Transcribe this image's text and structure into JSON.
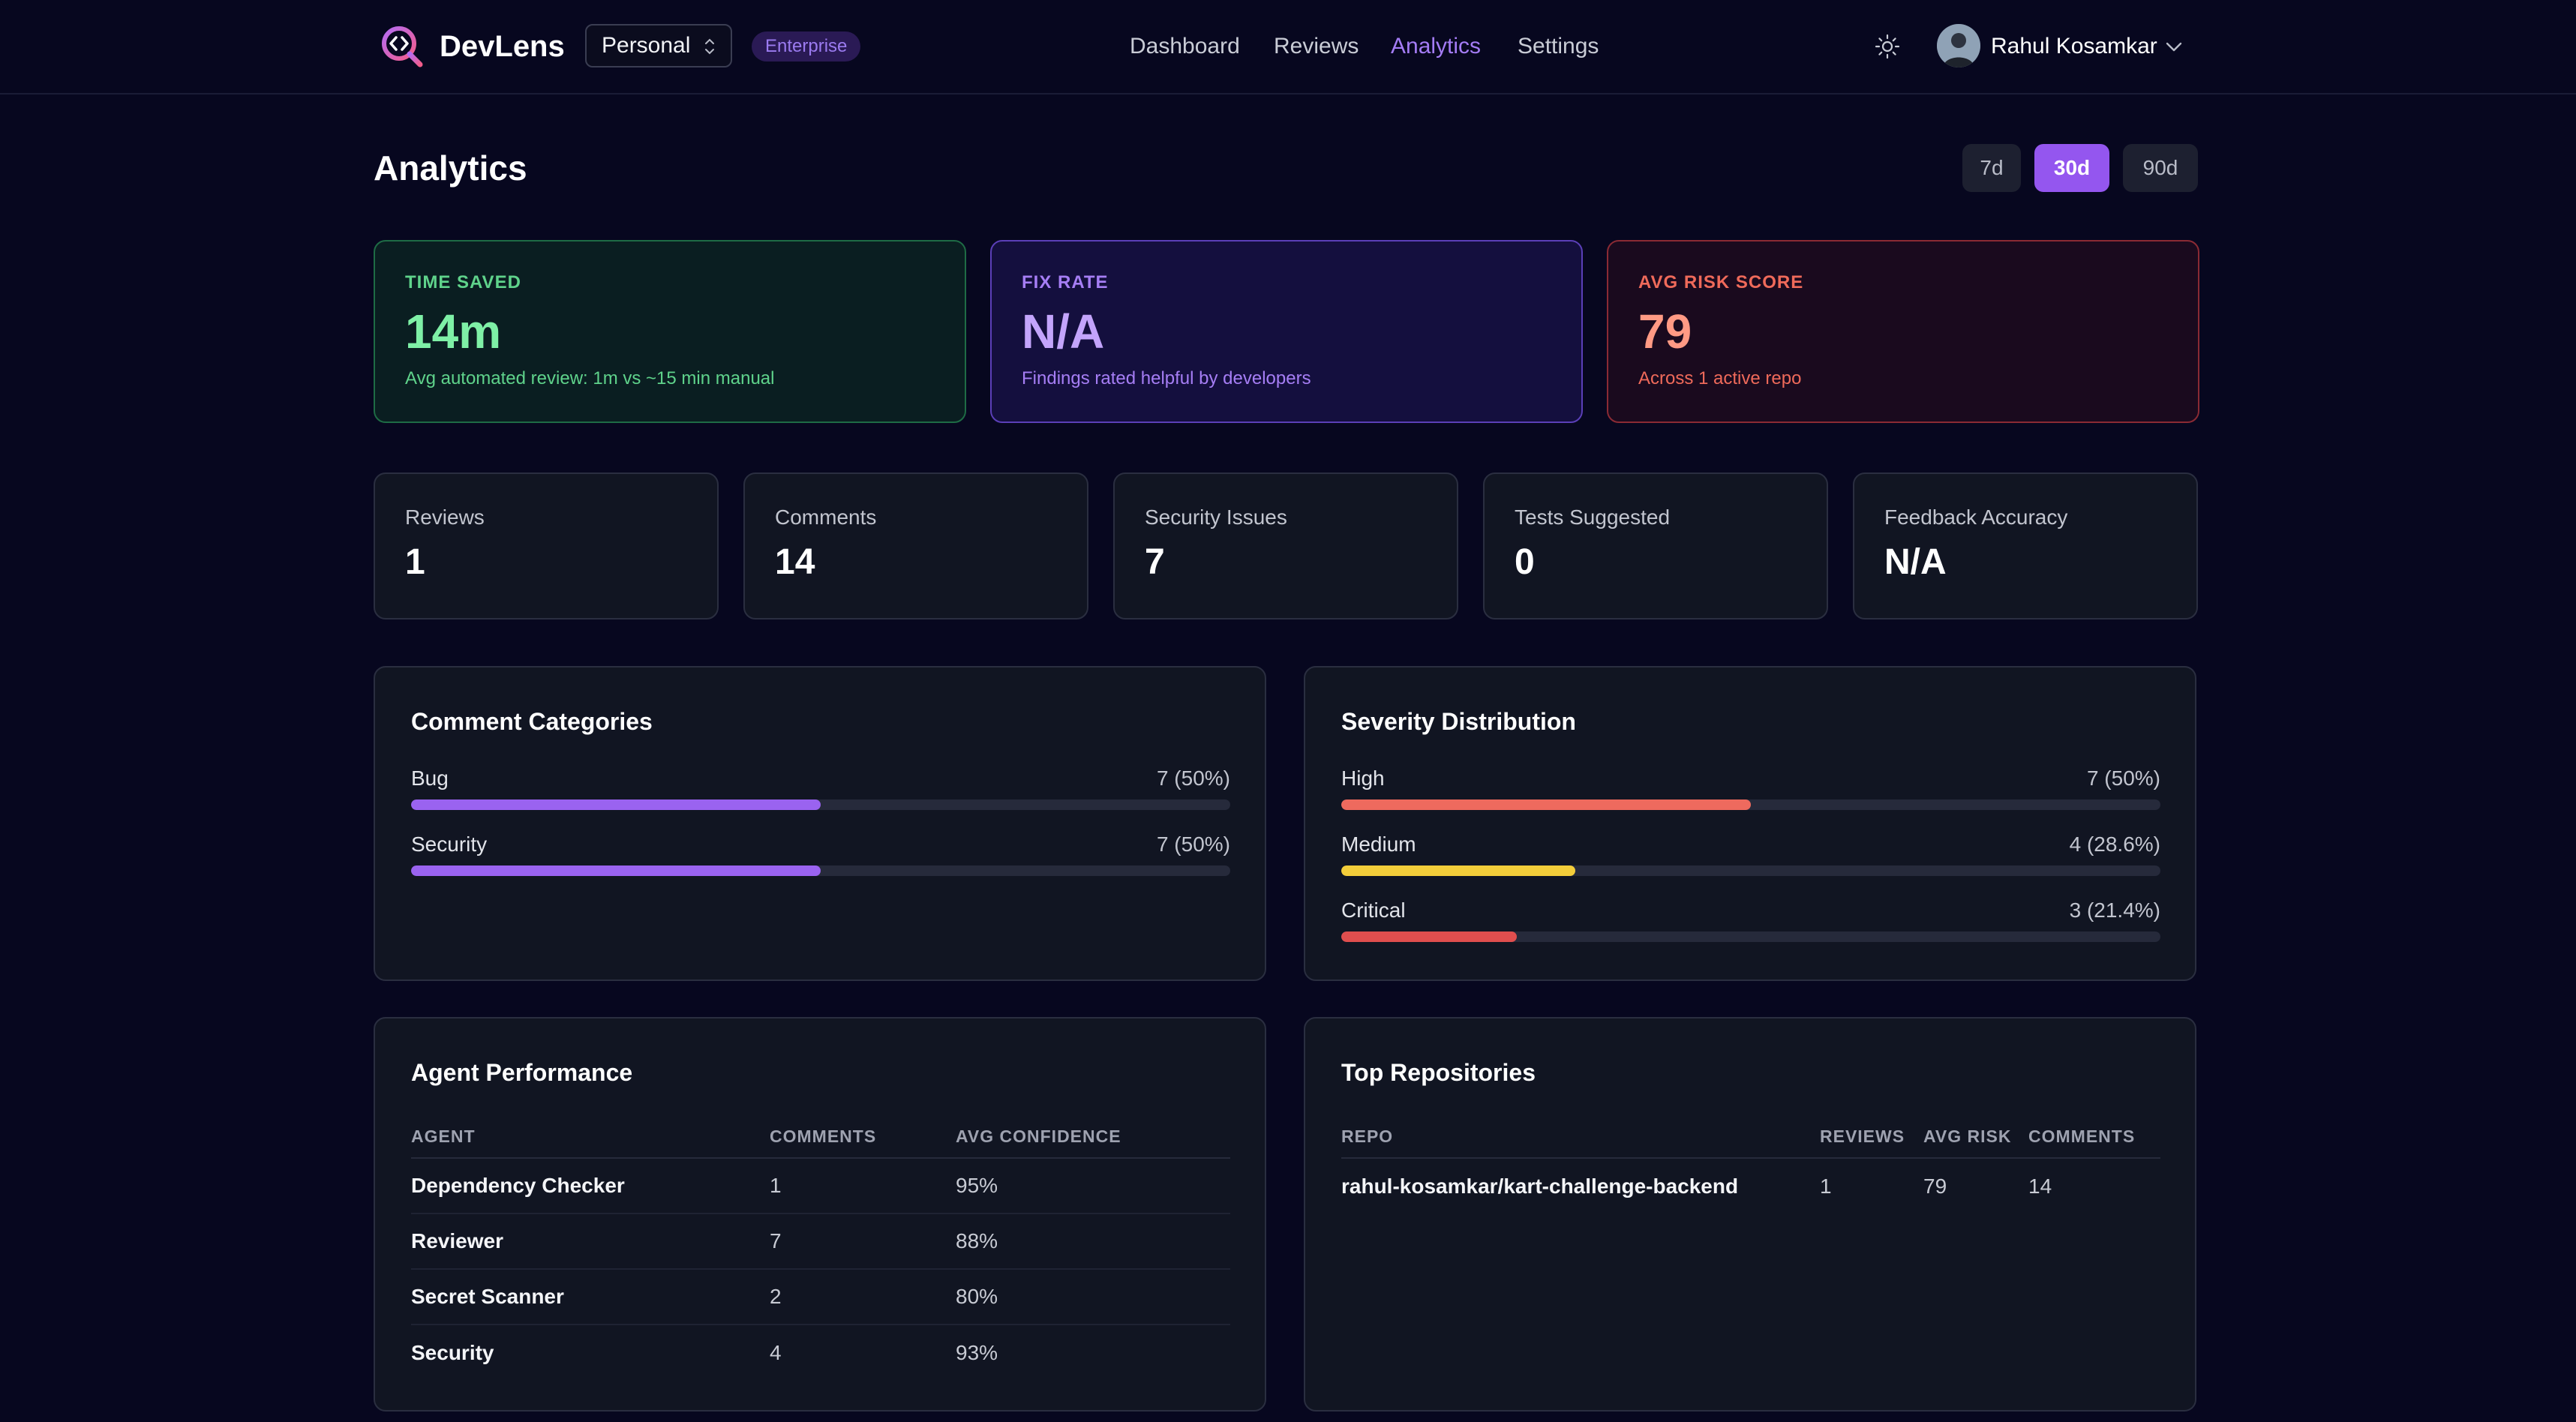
{
  "header": {
    "brand": "DevLens",
    "workspace": "Personal",
    "plan_badge": "Enterprise",
    "nav": [
      {
        "label": "Dashboard",
        "active": false
      },
      {
        "label": "Reviews",
        "active": false
      },
      {
        "label": "Analytics",
        "active": true
      },
      {
        "label": "Settings",
        "active": false
      }
    ],
    "user_name": "Rahul Kosamkar",
    "icons": {
      "logo": "devlens-logo-icon",
      "theme": "sun-icon",
      "user_menu": "chevron-down-icon"
    }
  },
  "page": {
    "title": "Analytics",
    "ranges": [
      {
        "label": "7d",
        "active": false
      },
      {
        "label": "30d",
        "active": true
      },
      {
        "label": "90d",
        "active": false
      }
    ]
  },
  "highlights": [
    {
      "label": "TIME SAVED",
      "value": "14m",
      "sub": "Avg automated review: 1m vs ~15 min manual"
    },
    {
      "label": "FIX RATE",
      "value": "N/A",
      "sub": "Findings rated helpful by developers"
    },
    {
      "label": "AVG RISK SCORE",
      "value": "79",
      "sub": "Across 1 active repo"
    }
  ],
  "stats": [
    {
      "label": "Reviews",
      "value": "1"
    },
    {
      "label": "Comments",
      "value": "14"
    },
    {
      "label": "Security Issues",
      "value": "7"
    },
    {
      "label": "Tests Suggested",
      "value": "0"
    },
    {
      "label": "Feedback Accuracy",
      "value": "N/A"
    }
  ],
  "comment_categories": {
    "title": "Comment Categories",
    "items": [
      {
        "name": "Bug",
        "count": "7 (50%)",
        "fraction": 0.5
      },
      {
        "name": "Security",
        "count": "7 (50%)",
        "fraction": 0.5
      }
    ]
  },
  "severity_distribution": {
    "title": "Severity Distribution",
    "items": [
      {
        "name": "High",
        "count": "7 (50%)",
        "fraction": 0.5
      },
      {
        "name": "Medium",
        "count": "4 (28.6%)",
        "fraction": 0.286
      },
      {
        "name": "Critical",
        "count": "3 (21.4%)",
        "fraction": 0.214
      }
    ]
  },
  "agent_performance": {
    "title": "Agent Performance",
    "columns": [
      "AGENT",
      "COMMENTS",
      "AVG CONFIDENCE"
    ],
    "rows": [
      {
        "agent": "Dependency Checker",
        "comments": "1",
        "confidence": "95%"
      },
      {
        "agent": "Reviewer",
        "comments": "7",
        "confidence": "88%"
      },
      {
        "agent": "Secret Scanner",
        "comments": "2",
        "confidence": "80%"
      },
      {
        "agent": "Security",
        "comments": "4",
        "confidence": "93%"
      }
    ]
  },
  "top_repositories": {
    "title": "Top Repositories",
    "columns": [
      "REPO",
      "REVIEWS",
      "AVG RISK",
      "COMMENTS"
    ],
    "rows": [
      {
        "repo": "rahul-kosamkar/kart-challenge-backend",
        "reviews": "1",
        "avg_risk": "79",
        "comments": "14"
      }
    ]
  },
  "colors": {
    "accent": "#9456ef",
    "bar_purple": "#9a63f0",
    "sev_high": "#ee6a5e",
    "sev_medium": "#f3cd3a",
    "sev_critical": "#e04e4e"
  }
}
